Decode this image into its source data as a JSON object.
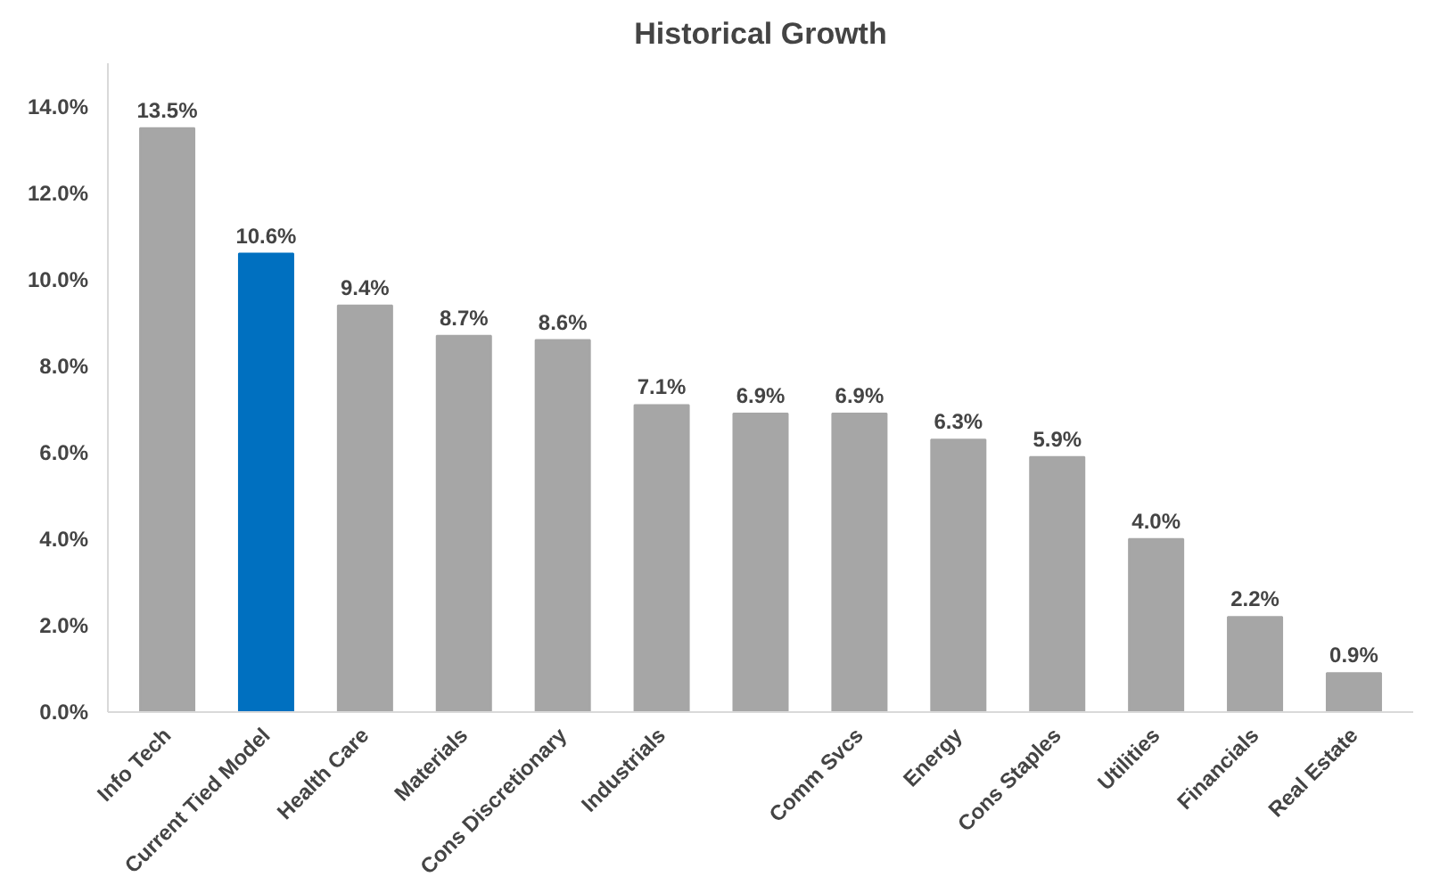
{
  "chart_data": {
    "type": "bar",
    "title": "Historical Growth",
    "categories": [
      "Info Tech",
      "Current Tied Model",
      "Health Care",
      "Materials",
      "Cons Discretionary",
      "Industrials",
      null,
      "Comm Svcs",
      "Energy",
      "Cons Staples",
      "Utilities",
      "Financials",
      "Real Estate"
    ],
    "values": [
      13.5,
      10.6,
      9.4,
      8.7,
      8.6,
      7.1,
      6.9,
      6.9,
      6.3,
      5.9,
      4.0,
      2.2,
      0.9
    ],
    "colors": [
      "#a6a6a6",
      "#0070c0",
      "#a6a6a6",
      "#a6a6a6",
      "#a6a6a6",
      "#a6a6a6",
      "#a6a6a6",
      "#a6a6a6",
      "#a6a6a6",
      "#a6a6a6",
      "#a6a6a6",
      "#a6a6a6",
      "#a6a6a6"
    ],
    "value_labels": [
      "13.5%",
      "10.6%",
      "9.4%",
      "8.7%",
      "8.6%",
      "7.1%",
      "6.9%",
      "6.9%",
      "6.3%",
      "5.9%",
      "4.0%",
      "2.2%",
      "0.9%"
    ],
    "ylim": [
      0,
      15
    ],
    "yticks": [
      {
        "value": 0,
        "label": "0.0%"
      },
      {
        "value": 2,
        "label": "2.0%"
      },
      {
        "value": 4,
        "label": "4.0%"
      },
      {
        "value": 6,
        "label": "6.0%"
      },
      {
        "value": 8,
        "label": "8.0%"
      },
      {
        "value": 10,
        "label": "10.0%"
      },
      {
        "value": 12,
        "label": "12.0%"
      },
      {
        "value": 14,
        "label": "14.0%"
      }
    ],
    "grid": false
  }
}
